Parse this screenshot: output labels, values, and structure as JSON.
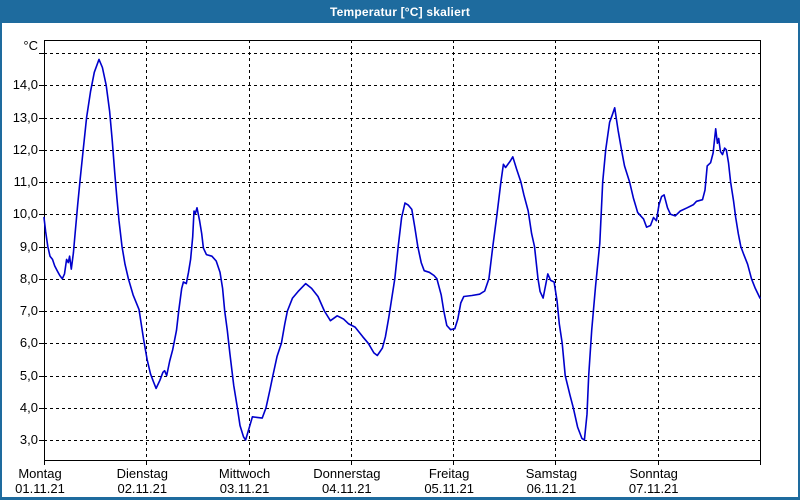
{
  "window": {
    "title": "Temperatur [°C] skaliert"
  },
  "colors": {
    "titlebar": "#1E6B9E",
    "window_border": "#1E6B9E",
    "plot_frame": "#000000",
    "grid": "#000000",
    "line": "#0000CC",
    "background": "#FFFFFF",
    "text": "#000000"
  },
  "chart_data": {
    "type": "line",
    "title": "Temperatur [°C] skaliert",
    "ylabel": "°C",
    "unit_label": "°C",
    "grid": "dashed horizontal at each 1.0 °C and vertical at each day boundary",
    "legend": "none",
    "ylim": [
      2.4,
      15.4
    ],
    "xlim_hours": [
      0,
      168
    ],
    "y_grid_values": [
      15,
      14,
      13,
      12,
      11,
      10,
      9,
      8,
      7,
      6,
      5,
      4,
      3
    ],
    "y_ticks": [
      {
        "v": 14,
        "label": "14,0"
      },
      {
        "v": 13,
        "label": "13,0"
      },
      {
        "v": 12,
        "label": "12,0"
      },
      {
        "v": 11,
        "label": "11,0"
      },
      {
        "v": 10,
        "label": "10,0"
      },
      {
        "v": 9,
        "label": "9,0"
      },
      {
        "v": 8,
        "label": "8,0"
      },
      {
        "v": 7,
        "label": "7,0"
      },
      {
        "v": 6,
        "label": "6,0"
      },
      {
        "v": 5,
        "label": "5,0"
      },
      {
        "v": 4,
        "label": "4,0"
      },
      {
        "v": 3,
        "label": "3,0"
      }
    ],
    "days": [
      {
        "name": "Montag",
        "date": "01.11.21"
      },
      {
        "name": "Dienstag",
        "date": "02.11.21"
      },
      {
        "name": "Mittwoch",
        "date": "03.11.21"
      },
      {
        "name": "Donnerstag",
        "date": "04.11.21"
      },
      {
        "name": "Freitag",
        "date": "05.11.21"
      },
      {
        "name": "Samstag",
        "date": "06.11.21"
      },
      {
        "name": "Sonntag",
        "date": "07.11.21"
      }
    ],
    "series": [
      {
        "name": "Temperatur",
        "x_unit": "hours since 01.11.21 00:00",
        "points": [
          [
            0.0,
            9.9
          ],
          [
            0.4,
            9.45
          ],
          [
            0.9,
            9.0
          ],
          [
            1.4,
            8.7
          ],
          [
            2.0,
            8.6
          ],
          [
            2.5,
            8.4
          ],
          [
            3.1,
            8.25
          ],
          [
            3.7,
            8.1
          ],
          [
            4.3,
            8.0
          ],
          [
            4.8,
            8.15
          ],
          [
            5.3,
            8.6
          ],
          [
            5.7,
            8.5
          ],
          [
            6.0,
            8.7
          ],
          [
            6.4,
            8.3
          ],
          [
            6.9,
            8.8
          ],
          [
            7.3,
            9.4
          ],
          [
            7.9,
            10.3
          ],
          [
            8.5,
            11.1
          ],
          [
            9.2,
            12.0
          ],
          [
            10.0,
            13.0
          ],
          [
            10.9,
            13.8
          ],
          [
            11.8,
            14.4
          ],
          [
            12.9,
            14.8
          ],
          [
            13.7,
            14.55
          ],
          [
            14.6,
            14.0
          ],
          [
            15.4,
            13.2
          ],
          [
            16.0,
            12.3
          ],
          [
            16.6,
            11.3
          ],
          [
            17.1,
            10.5
          ],
          [
            17.6,
            9.8
          ],
          [
            18.3,
            9.0
          ],
          [
            19.0,
            8.45
          ],
          [
            19.8,
            8.0
          ],
          [
            20.9,
            7.5
          ],
          [
            22.3,
            7.05
          ],
          [
            23.4,
            6.1
          ],
          [
            24.2,
            5.5
          ],
          [
            25.0,
            5.05
          ],
          [
            25.7,
            4.8
          ],
          [
            26.3,
            4.6
          ],
          [
            27.2,
            4.85
          ],
          [
            27.9,
            5.1
          ],
          [
            28.3,
            5.15
          ],
          [
            28.8,
            5.0
          ],
          [
            29.5,
            5.45
          ],
          [
            30.2,
            5.8
          ],
          [
            31.1,
            6.4
          ],
          [
            31.6,
            7.0
          ],
          [
            32.3,
            7.7
          ],
          [
            32.7,
            7.9
          ],
          [
            33.4,
            7.85
          ],
          [
            33.9,
            8.2
          ],
          [
            34.4,
            8.6
          ],
          [
            34.9,
            9.3
          ],
          [
            35.2,
            10.1
          ],
          [
            35.5,
            10.02
          ],
          [
            35.9,
            10.2
          ],
          [
            36.5,
            9.8
          ],
          [
            37.0,
            9.4
          ],
          [
            37.4,
            8.95
          ],
          [
            38.1,
            8.75
          ],
          [
            39.4,
            8.7
          ],
          [
            40.4,
            8.55
          ],
          [
            41.3,
            8.2
          ],
          [
            41.9,
            7.7
          ],
          [
            42.4,
            7.0
          ],
          [
            43.0,
            6.4
          ],
          [
            43.6,
            5.7
          ],
          [
            44.5,
            4.7
          ],
          [
            45.3,
            4.05
          ],
          [
            46.0,
            3.45
          ],
          [
            46.8,
            3.1
          ],
          [
            47.3,
            3.0
          ],
          [
            48.2,
            3.4
          ],
          [
            48.9,
            3.72
          ],
          [
            50.0,
            3.7
          ],
          [
            51.2,
            3.68
          ],
          [
            52.1,
            4.0
          ],
          [
            53.0,
            4.55
          ],
          [
            53.7,
            5.0
          ],
          [
            54.7,
            5.6
          ],
          [
            55.7,
            6.0
          ],
          [
            56.5,
            6.6
          ],
          [
            57.1,
            7.0
          ],
          [
            58.3,
            7.4
          ],
          [
            59.6,
            7.6
          ],
          [
            61.4,
            7.85
          ],
          [
            62.8,
            7.7
          ],
          [
            64.3,
            7.45
          ],
          [
            65.8,
            7.0
          ],
          [
            67.2,
            6.7
          ],
          [
            68.8,
            6.85
          ],
          [
            70.3,
            6.75
          ],
          [
            71.5,
            6.6
          ],
          [
            73.0,
            6.5
          ],
          [
            74.8,
            6.2
          ],
          [
            76.1,
            6.0
          ],
          [
            77.4,
            5.7
          ],
          [
            78.2,
            5.62
          ],
          [
            79.4,
            5.85
          ],
          [
            80.1,
            6.2
          ],
          [
            80.9,
            6.8
          ],
          [
            81.5,
            7.3
          ],
          [
            82.3,
            8.0
          ],
          [
            83.1,
            9.0
          ],
          [
            83.9,
            9.9
          ],
          [
            84.7,
            10.35
          ],
          [
            85.5,
            10.28
          ],
          [
            86.3,
            10.15
          ],
          [
            87.0,
            9.6
          ],
          [
            87.7,
            9.0
          ],
          [
            88.5,
            8.5
          ],
          [
            89.2,
            8.25
          ],
          [
            90.4,
            8.2
          ],
          [
            91.5,
            8.1
          ],
          [
            92.2,
            8.0
          ],
          [
            93.2,
            7.5
          ],
          [
            93.8,
            7.0
          ],
          [
            94.5,
            6.55
          ],
          [
            95.4,
            6.42
          ],
          [
            96.4,
            6.45
          ],
          [
            97.1,
            6.75
          ],
          [
            97.8,
            7.25
          ],
          [
            98.5,
            7.45
          ],
          [
            100.4,
            7.48
          ],
          [
            102.2,
            7.52
          ],
          [
            103.4,
            7.62
          ],
          [
            104.4,
            8.0
          ],
          [
            105.3,
            9.0
          ],
          [
            106.3,
            10.0
          ],
          [
            107.2,
            11.0
          ],
          [
            107.8,
            11.55
          ],
          [
            108.3,
            11.45
          ],
          [
            109.4,
            11.65
          ],
          [
            110.0,
            11.78
          ],
          [
            110.9,
            11.4
          ],
          [
            111.9,
            11.0
          ],
          [
            112.6,
            10.6
          ],
          [
            113.6,
            10.1
          ],
          [
            114.4,
            9.4
          ],
          [
            115.1,
            9.0
          ],
          [
            115.9,
            8.0
          ],
          [
            116.4,
            7.6
          ],
          [
            117.1,
            7.4
          ],
          [
            118.2,
            8.15
          ],
          [
            118.9,
            7.95
          ],
          [
            119.7,
            7.9
          ],
          [
            120.4,
            7.3
          ],
          [
            120.9,
            6.6
          ],
          [
            121.6,
            6.0
          ],
          [
            122.3,
            5.0
          ],
          [
            123.4,
            4.4
          ],
          [
            124.2,
            4.0
          ],
          [
            125.2,
            3.4
          ],
          [
            126.2,
            3.05
          ],
          [
            126.8,
            3.0
          ],
          [
            127.4,
            3.8
          ],
          [
            127.8,
            5.0
          ],
          [
            128.5,
            6.4
          ],
          [
            129.4,
            7.75
          ],
          [
            130.4,
            9.1
          ],
          [
            131.1,
            11.0
          ],
          [
            131.8,
            12.0
          ],
          [
            132.7,
            12.85
          ],
          [
            133.4,
            13.1
          ],
          [
            133.9,
            13.3
          ],
          [
            134.7,
            12.6
          ],
          [
            135.5,
            12.0
          ],
          [
            136.2,
            11.5
          ],
          [
            137.4,
            11.0
          ],
          [
            138.3,
            10.5
          ],
          [
            139.3,
            10.05
          ],
          [
            140.7,
            9.85
          ],
          [
            141.4,
            9.6
          ],
          [
            142.3,
            9.65
          ],
          [
            143.0,
            9.9
          ],
          [
            143.7,
            9.8
          ],
          [
            144.3,
            10.3
          ],
          [
            144.9,
            10.55
          ],
          [
            145.5,
            10.6
          ],
          [
            146.3,
            10.2
          ],
          [
            147.0,
            10.0
          ],
          [
            148.1,
            9.95
          ],
          [
            149.3,
            10.1
          ],
          [
            150.9,
            10.2
          ],
          [
            152.4,
            10.3
          ],
          [
            153.1,
            10.4
          ],
          [
            154.5,
            10.45
          ],
          [
            155.1,
            10.75
          ],
          [
            155.6,
            11.5
          ],
          [
            156.4,
            11.6
          ],
          [
            157.0,
            11.9
          ],
          [
            157.6,
            12.65
          ],
          [
            158.0,
            12.2
          ],
          [
            158.3,
            12.35
          ],
          [
            158.7,
            11.95
          ],
          [
            159.2,
            11.85
          ],
          [
            159.7,
            12.05
          ],
          [
            160.1,
            12.0
          ],
          [
            160.6,
            11.6
          ],
          [
            161.1,
            11.0
          ],
          [
            161.8,
            10.4
          ],
          [
            162.3,
            9.9
          ],
          [
            162.9,
            9.4
          ],
          [
            163.5,
            9.0
          ],
          [
            164.2,
            8.75
          ],
          [
            165.1,
            8.45
          ],
          [
            166.0,
            8.0
          ],
          [
            166.9,
            7.7
          ],
          [
            168.0,
            7.4
          ]
        ]
      }
    ]
  }
}
